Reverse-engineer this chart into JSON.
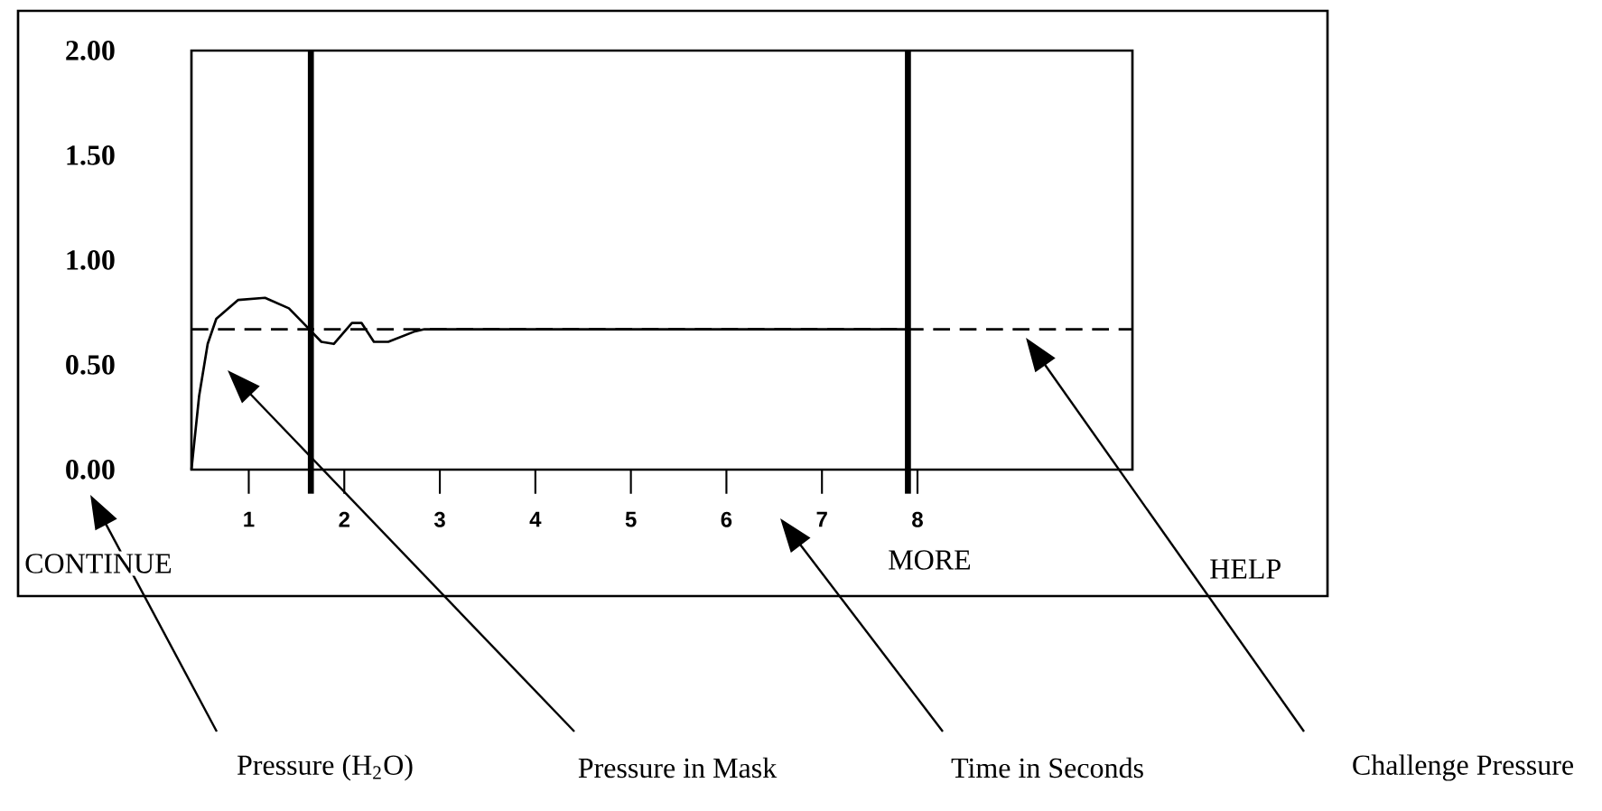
{
  "chart_data": {
    "type": "line",
    "x": [
      0.4,
      0.48,
      0.57,
      0.66,
      0.89,
      1.17,
      1.42,
      1.57,
      1.76,
      1.89,
      2.08,
      2.18,
      2.31,
      2.46,
      2.74,
      2.84,
      7.89
    ],
    "series": [
      {
        "color": "#000000",
        "values": [
          0,
          0.35,
          0.6,
          0.72,
          0.81,
          0.82,
          0.77,
          0.7,
          0.61,
          0.6,
          0.7,
          0.7,
          0.61,
          0.61,
          0.66,
          0.67,
          0.67
        ]
      }
    ],
    "xlim": [
      0.4,
      10.25
    ],
    "ylim": [
      0,
      2
    ],
    "xticks": [
      1,
      2,
      3,
      4,
      5,
      6,
      7,
      8
    ],
    "yticks": [
      {
        "value": 0,
        "label": "0.00"
      },
      {
        "value": 0.5,
        "label": "0.50"
      },
      {
        "value": 1,
        "label": "1.00"
      },
      {
        "value": 1.5,
        "label": "1.50"
      },
      {
        "value": 2,
        "label": "2.00"
      }
    ],
    "ref_lines": [
      {
        "axis": "y",
        "value": 0.67,
        "line_style": "dashed",
        "color": "#000000"
      },
      {
        "axis": "x",
        "value": 1.65,
        "line_style": "solid",
        "color": "#000000"
      },
      {
        "axis": "x",
        "value": 7.9,
        "line_style": "solid",
        "color": "#000000"
      }
    ],
    "annotations": [
      "CONTINUE",
      "MORE",
      "HELP",
      "Pressure (H$_{2}$O)",
      "Pressure in Mask",
      "Time in Seconds",
      "Challenge Pressure"
    ],
    "line_style": "solid",
    "marker": "none",
    "grid": false
  }
}
